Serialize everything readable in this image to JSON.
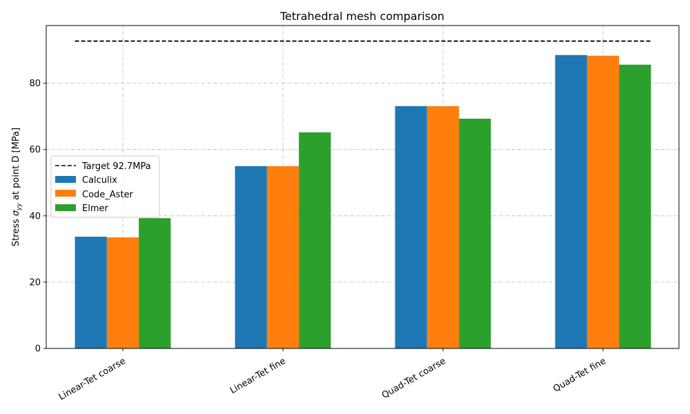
{
  "chart_data": {
    "type": "bar",
    "title": "Tetrahedral mesh comparison",
    "ylabel_prefix": "Stress ",
    "ylabel_symbol": "σ",
    "ylabel_subscript": "yy",
    "ylabel_suffix": " at point D [MPa]",
    "xlabel": "",
    "categories": [
      "Linear-Tet coarse",
      "Linear-Tet fine",
      "Quad-Tet coarse",
      "Quad-Tet fine"
    ],
    "series": [
      {
        "name": "Calculix",
        "color": "#1f77b4",
        "values": [
          33.7,
          55.0,
          73.1,
          88.5
        ]
      },
      {
        "name": "Code_Aster",
        "color": "#ff7f0e",
        "values": [
          33.5,
          55.0,
          73.1,
          88.3
        ]
      },
      {
        "name": "Elmer",
        "color": "#2ca02c",
        "values": [
          39.3,
          65.2,
          69.3,
          85.6
        ]
      }
    ],
    "target": {
      "label": "Target 92.7MPa",
      "value": 92.7,
      "color": "#000000"
    },
    "ylim": [
      0,
      97.4
    ],
    "yticks": [
      0,
      20,
      40,
      60,
      80
    ],
    "grid": true,
    "legend_position": "center-left"
  }
}
